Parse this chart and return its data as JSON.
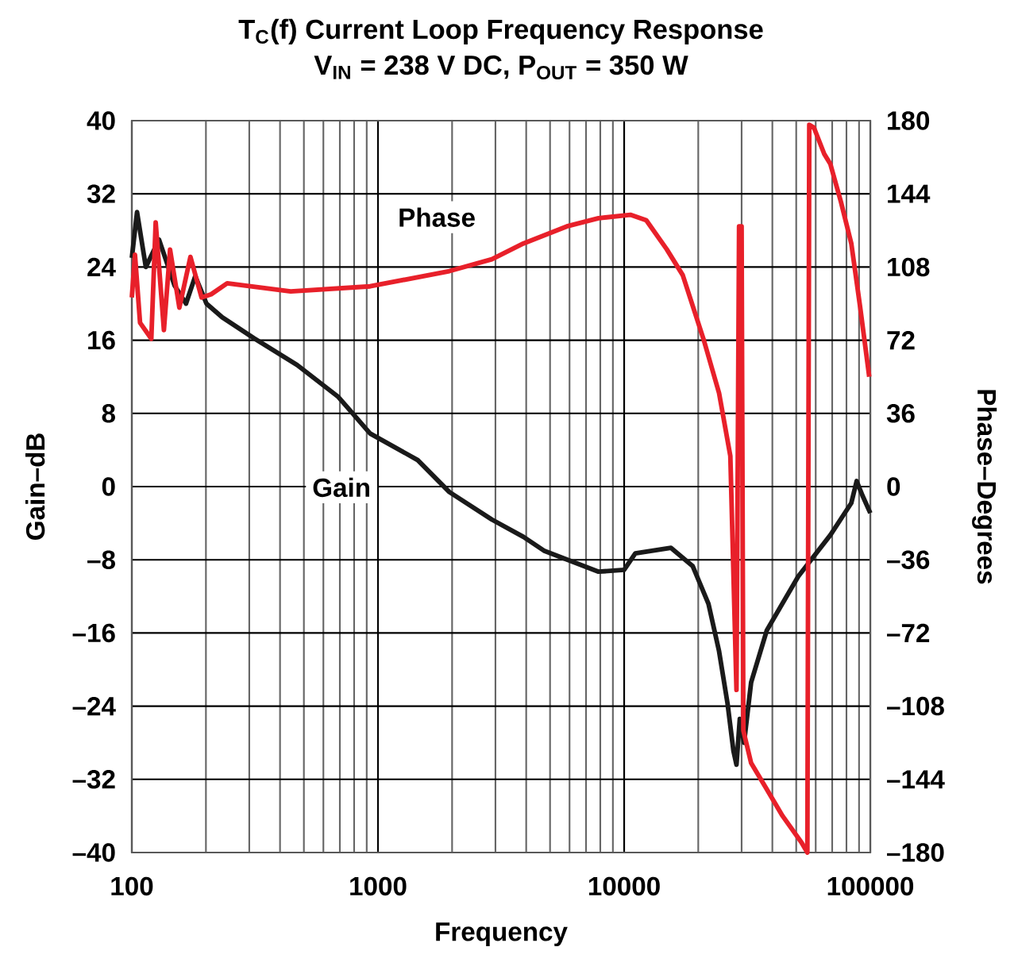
{
  "chart_data": {
    "type": "line",
    "title": "T$_{C}$(f) Current Loop Frequency Response",
    "subtitle": "V$_{IN}$ = 238 V DC, P$_{OUT}$ = 350 W",
    "xlabel": "Frequency",
    "ylabel": "Gain–dB",
    "y2label": "Phase–Degrees",
    "log": "x",
    "grid": true,
    "xlim": [
      100,
      100000
    ],
    "xticks": [
      100,
      1000,
      10000,
      100000
    ],
    "ylim": [
      -40,
      40
    ],
    "yticks": [
      {
        "value": -40,
        "label": "–40"
      },
      {
        "value": -32,
        "label": "–32"
      },
      {
        "value": -24,
        "label": "–24"
      },
      {
        "value": -16,
        "label": "–16"
      },
      {
        "value": -8,
        "label": "–8"
      },
      0,
      8,
      16,
      24,
      32,
      40
    ],
    "y2lim": [
      -180,
      180
    ],
    "y2ticks": [
      {
        "value": -180,
        "label": "–180"
      },
      {
        "value": -144,
        "label": "–144"
      },
      {
        "value": -108,
        "label": "–108"
      },
      {
        "value": -72,
        "label": "–72"
      },
      {
        "value": -36,
        "label": "–36"
      },
      0,
      36,
      72,
      108,
      144,
      180
    ],
    "series": [
      {
        "name": "Gain",
        "color": "#1a1a1a",
        "x": [
          100,
          105,
          114,
          129,
          149,
          166,
          181,
          201,
          233,
          314,
          469,
          690,
          929,
          1450,
          1950,
          2900,
          3900,
          4720,
          7870,
          10000,
          11100,
          15500,
          19000,
          22000,
          24300,
          26300,
          27800,
          28600,
          29500,
          30700,
          32800,
          38000,
          51000,
          68800,
          83700,
          88000,
          93000,
          100000
        ],
        "values": [
          25,
          30,
          24,
          27,
          22,
          20,
          23,
          20,
          18.5,
          16.2,
          13.3,
          9.8,
          5.8,
          2.9,
          -0.6,
          -3.6,
          -5.5,
          -7,
          -9.3,
          -9.1,
          -7.3,
          -6.7,
          -8.7,
          -12.8,
          -18,
          -23.7,
          -28.9,
          -30.4,
          -25.4,
          -28,
          -21.4,
          -15.7,
          -9.8,
          -5.3,
          -1.8,
          0.6,
          -1,
          -2.9
        ]
      },
      {
        "name": "Phase",
        "color": "#e8202a",
        "axis": "y2",
        "x": [
          100,
          103,
          108,
          120,
          125,
          135,
          143,
          156,
          173,
          192,
          210,
          244,
          442,
          929,
          1950,
          2900,
          3900,
          5850,
          7870,
          10600,
          12300,
          14900,
          17300,
          21000,
          24300,
          27000,
          28600,
          29300,
          30000,
          30500,
          32800,
          38000,
          44000,
          52500,
          55500,
          56500,
          59000,
          65000,
          68800,
          76000,
          83700,
          91000,
          99000
        ],
        "values": [
          93,
          114,
          80.6,
          72.7,
          130,
          77,
          116.6,
          88,
          113,
          93,
          94.6,
          100,
          96,
          98.5,
          106,
          111.8,
          119.6,
          128,
          132,
          133.7,
          131,
          116.7,
          104,
          72.6,
          46,
          15,
          -100,
          128,
          128,
          -120,
          -136,
          -149,
          -162,
          -175,
          -180,
          178,
          176.6,
          163.6,
          158.7,
          140,
          119.6,
          88,
          54
        ]
      }
    ]
  }
}
